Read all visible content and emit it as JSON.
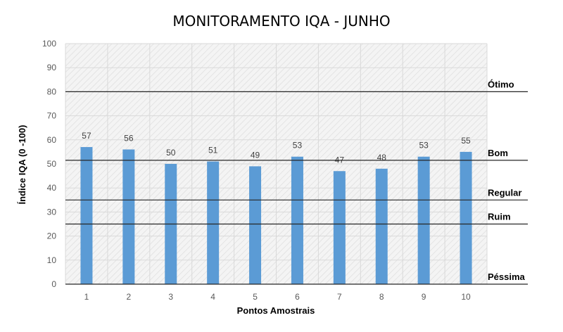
{
  "chart_data": {
    "type": "bar",
    "title": "MONITORAMENTO IQA - JUNHO",
    "xlabel": "Pontos Amostrais",
    "ylabel": "Índice IQA (0 -100)",
    "categories": [
      "1",
      "2",
      "3",
      "4",
      "5",
      "6",
      "7",
      "8",
      "9",
      "10"
    ],
    "values": [
      57,
      56,
      50,
      51,
      49,
      53,
      47,
      48,
      53,
      55
    ],
    "ylim": [
      0,
      100
    ],
    "yticks": [
      0,
      10,
      20,
      30,
      40,
      50,
      60,
      70,
      80,
      90,
      100
    ],
    "grid": true,
    "bar_color": "#5b9bd5",
    "thresholds": [
      {
        "label": "Ótimo",
        "value": 80
      },
      {
        "label": "Bom",
        "value": 51.5
      },
      {
        "label": "Regular",
        "value": 35
      },
      {
        "label": "Ruim",
        "value": 25
      },
      {
        "label": "Péssima",
        "value": 0
      }
    ]
  }
}
